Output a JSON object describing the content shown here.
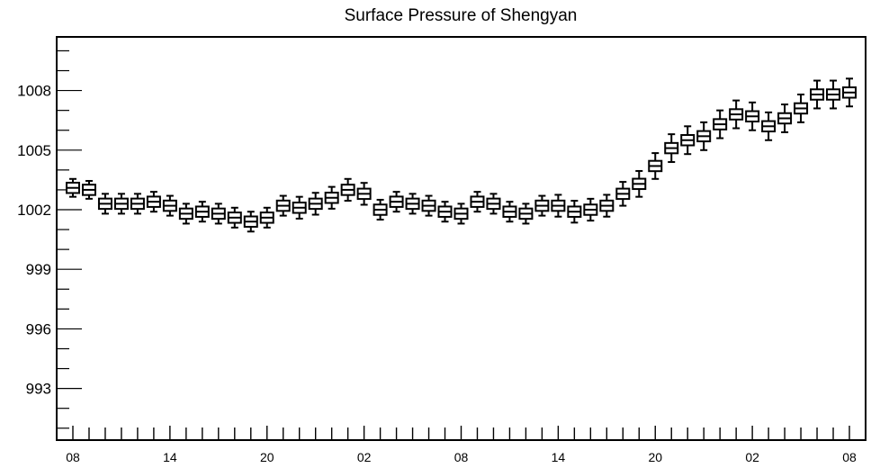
{
  "chart_data": {
    "type": "boxplot",
    "title": "Surface Pressure of Shengyan",
    "xlabel": "",
    "ylabel": "",
    "ylim": [
      990.4,
      1010.7
    ],
    "yticks_major": [
      993,
      996,
      999,
      1002,
      1005,
      1008
    ],
    "x_tick_labels": [
      "08",
      "14",
      "20",
      "02",
      "08",
      "14",
      "20",
      "02",
      "08"
    ],
    "x_tick_label_positions": [
      0,
      6,
      12,
      18,
      24,
      30,
      36,
      42,
      48
    ],
    "x_count": 49,
    "grid": false,
    "median": [
      1003.1,
      1003.0,
      1002.3,
      1002.3,
      1002.3,
      1002.4,
      1002.2,
      1001.8,
      1001.9,
      1001.8,
      1001.6,
      1001.4,
      1001.6,
      1002.2,
      1002.1,
      1002.3,
      1002.6,
      1003.0,
      1002.8,
      1002.0,
      1002.4,
      1002.3,
      1002.2,
      1001.9,
      1001.8,
      1002.4,
      1002.3,
      1001.9,
      1001.8,
      1002.2,
      1002.2,
      1001.9,
      1002.0,
      1002.2,
      1002.8,
      1003.3,
      1004.2,
      1005.1,
      1005.5,
      1005.7,
      1006.3,
      1006.8,
      1006.7,
      1006.2,
      1006.6,
      1007.1,
      1007.8,
      1007.8,
      1007.9
    ],
    "spread": [
      0.45,
      0.45,
      0.5,
      0.5,
      0.5,
      0.5,
      0.5,
      0.5,
      0.5,
      0.5,
      0.5,
      0.5,
      0.5,
      0.5,
      0.55,
      0.55,
      0.55,
      0.55,
      0.55,
      0.5,
      0.5,
      0.5,
      0.5,
      0.5,
      0.5,
      0.5,
      0.5,
      0.5,
      0.5,
      0.5,
      0.55,
      0.55,
      0.55,
      0.55,
      0.6,
      0.65,
      0.65,
      0.7,
      0.7,
      0.7,
      0.7,
      0.7,
      0.7,
      0.7,
      0.7,
      0.7,
      0.7,
      0.7,
      0.7
    ]
  }
}
